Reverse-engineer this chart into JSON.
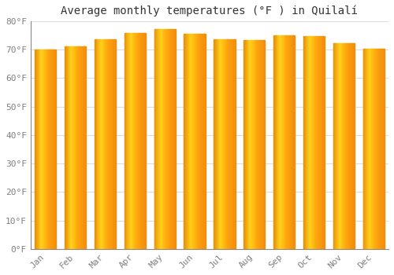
{
  "title": "Average monthly temperatures (°F ) in Quilalí",
  "months": [
    "Jan",
    "Feb",
    "Mar",
    "Apr",
    "May",
    "Jun",
    "Jul",
    "Aug",
    "Sep",
    "Oct",
    "Nov",
    "Dec"
  ],
  "values": [
    70.0,
    71.2,
    73.5,
    75.7,
    77.3,
    75.5,
    73.5,
    73.3,
    75.0,
    74.7,
    72.1,
    70.2
  ],
  "bar_color_left": "#E8900A",
  "bar_color_mid": "#FFD040",
  "bar_color_right": "#FFA010",
  "ylim": [
    0,
    80
  ],
  "ytick_interval": 10,
  "background_color": "#FFFFFF",
  "plot_bg_color": "#FFFFFF",
  "grid_color": "#DDDDDD",
  "title_fontsize": 10,
  "tick_fontsize": 8,
  "font_family": "monospace"
}
